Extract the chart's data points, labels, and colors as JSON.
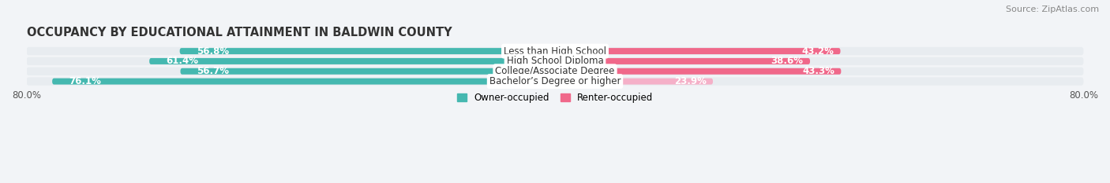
{
  "title": "OCCUPANCY BY EDUCATIONAL ATTAINMENT IN BALDWIN COUNTY",
  "source": "Source: ZipAtlas.com",
  "categories": [
    "Less than High School",
    "High School Diploma",
    "College/Associate Degree",
    "Bachelor’s Degree or higher"
  ],
  "owner_values": [
    56.8,
    61.4,
    56.7,
    76.1
  ],
  "renter_values": [
    43.2,
    38.6,
    43.3,
    23.9
  ],
  "owner_color": "#45b8b0",
  "renter_color_full": "#f0688a",
  "renter_color_light": "#f5b0c8",
  "xlim": 80.0,
  "legend_owner": "Owner-occupied",
  "legend_renter": "Renter-occupied",
  "bar_height": 0.62,
  "bg_color": "#f2f4f7",
  "row_bg_color": "#e8ecf0",
  "title_fontsize": 10.5,
  "label_fontsize": 8.5,
  "value_fontsize": 8.5,
  "source_fontsize": 8,
  "cat_label_fontsize": 8.5
}
